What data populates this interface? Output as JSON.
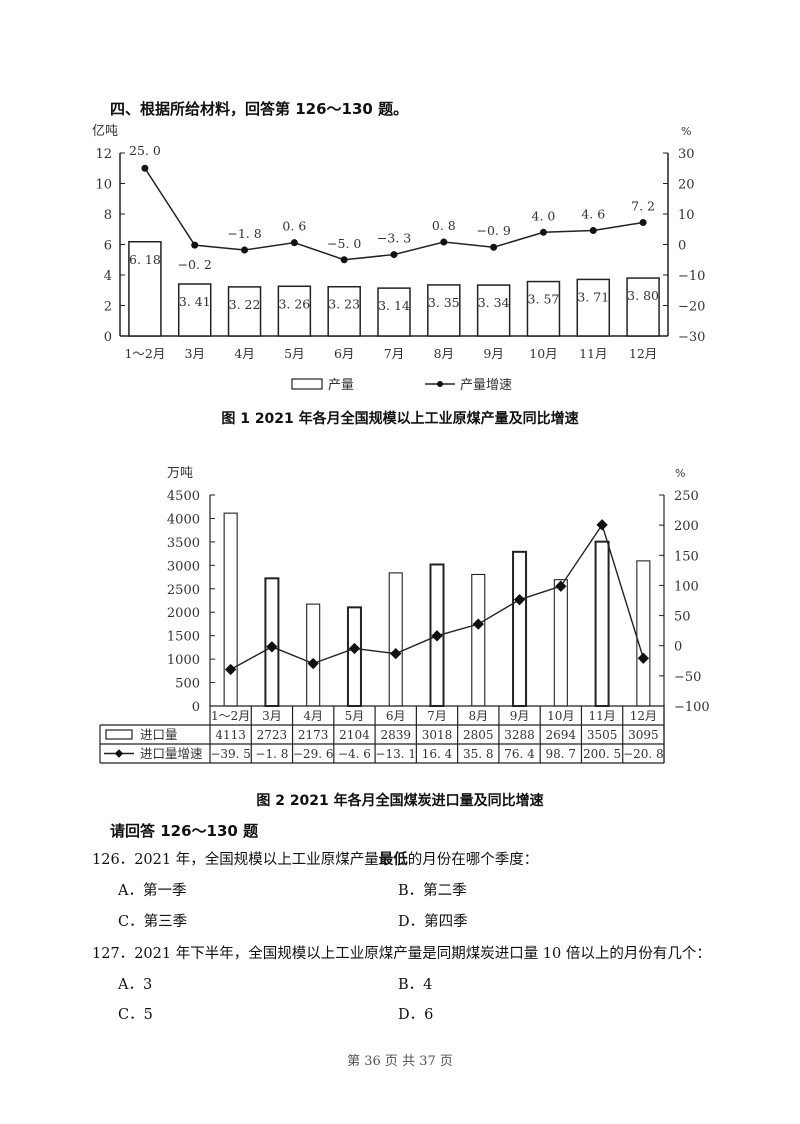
{
  "section": {
    "title": "四、根据所给材料，回答第 126～130 题。"
  },
  "chart_data": [
    {
      "type": "bar+line",
      "title": "图 1   2021 年各月全国规模以上工业原煤产量及同比增速",
      "categories": [
        "1～2月",
        "3月",
        "4月",
        "5月",
        "6月",
        "7月",
        "8月",
        "9月",
        "10月",
        "11月",
        "12月"
      ],
      "series": [
        {
          "name": "产量",
          "type": "bar",
          "axis": "left",
          "unit": "亿吨",
          "values": [
            6.18,
            3.41,
            3.22,
            3.26,
            3.23,
            3.14,
            3.35,
            3.34,
            3.57,
            3.71,
            3.8
          ]
        },
        {
          "name": "产量增速",
          "type": "line",
          "axis": "right",
          "unit": "%",
          "values": [
            25.0,
            -0.2,
            -1.8,
            0.6,
            -5.0,
            -3.3,
            0.8,
            -0.9,
            4.0,
            4.6,
            7.2
          ]
        }
      ],
      "ylabel_left": "亿吨",
      "ylim_left": [
        0,
        12
      ],
      "yticks_left": [
        0,
        2,
        4,
        6,
        8,
        10,
        12
      ],
      "ylabel_right": "%",
      "ylim_right": [
        -30,
        30
      ],
      "yticks_right": [
        -30,
        -20,
        -10,
        0,
        10,
        20,
        30
      ],
      "legend": [
        "产量",
        "产量增速"
      ],
      "legend_position": "bottom",
      "grid": false
    },
    {
      "type": "bar+line",
      "title": "图 2   2021 年各月全国煤炭进口量及同比增速",
      "categories": [
        "1～2月",
        "3月",
        "4月",
        "5月",
        "6月",
        "7月",
        "8月",
        "9月",
        "10月",
        "11月",
        "12月"
      ],
      "series": [
        {
          "name": "进口量",
          "type": "bar",
          "axis": "left",
          "unit": "万吨",
          "values": [
            4113,
            2723,
            2173,
            2104,
            2839,
            3018,
            2805,
            3288,
            2694,
            3505,
            3095
          ]
        },
        {
          "name": "进口量增速",
          "type": "line",
          "axis": "right",
          "unit": "%",
          "values": [
            -39.5,
            -1.8,
            -29.6,
            -4.6,
            -13.1,
            16.4,
            35.8,
            76.4,
            98.7,
            200.5,
            -20.8
          ]
        }
      ],
      "ylabel_left": "万吨",
      "ylim_left": [
        0,
        4500
      ],
      "yticks_left": [
        0,
        500,
        1000,
        1500,
        2000,
        2500,
        3000,
        3500,
        4000,
        4500
      ],
      "ylabel_right": "%",
      "ylim_right": [
        -100,
        250
      ],
      "yticks_right": [
        -100,
        -50,
        0,
        50,
        100,
        150,
        200,
        250
      ],
      "legend_position": "data-table",
      "grid": false
    }
  ],
  "chart1": {
    "left_unit": "亿吨",
    "right_unit": "%",
    "legend_bar": "产量",
    "legend_line": "产量增速",
    "caption": "图 1   2021 年各月全国规模以上工业原煤产量及同比增速"
  },
  "chart2": {
    "left_unit": "万吨",
    "right_unit": "%",
    "table_row1_label": "进口量",
    "table_row2_label": "进口量增速",
    "caption": "图 2   2021 年各月全国煤炭进口量及同比增速"
  },
  "questions": {
    "heading": "请回答 126～130 题",
    "items": [
      {
        "number": "126．",
        "stem_pre": "2021 年，全国规模以上工业原煤产量",
        "stem_bold": "最低",
        "stem_post": "的月份在哪个季度：",
        "options": [
          "A．第一季",
          "B．第二季",
          "C．第三季",
          "D．第四季"
        ]
      },
      {
        "number": "127．",
        "stem_pre": "2021 年下半年，全国规模以上工业原煤产量是同期煤炭进口量 10 倍以上的月份有几个：",
        "stem_bold": "",
        "stem_post": "",
        "options": [
          "A．3",
          "B．4",
          "C．5",
          "D．6"
        ]
      }
    ]
  },
  "footer": {
    "page_text": "第 36 页   共 37 页"
  }
}
